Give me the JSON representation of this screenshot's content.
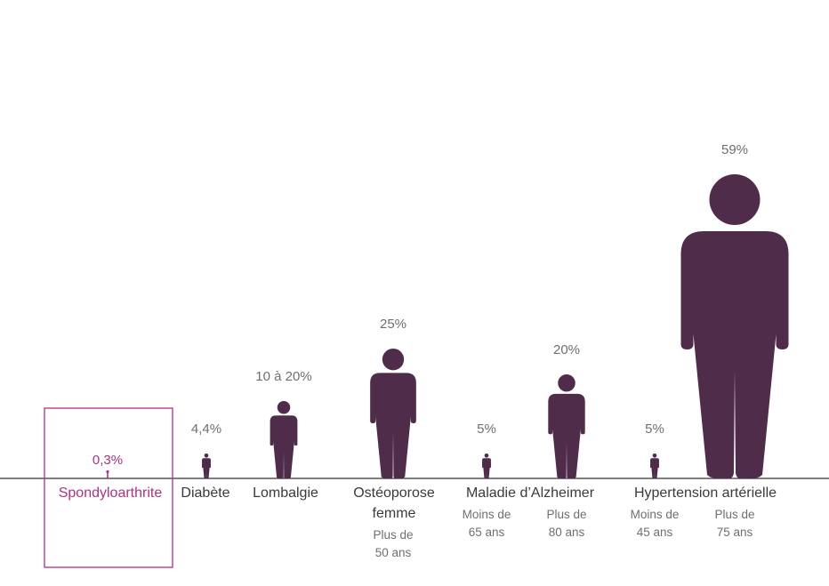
{
  "chart_data": {
    "type": "pictogram",
    "unit": "%",
    "colors": {
      "figure": "#4f2c4a",
      "highlight": "#b1307e",
      "baseline": "#333333"
    },
    "highlight_category": "Spondyloarthrite",
    "items": [
      {
        "category": "Spondyloarthrite",
        "value": 0.3,
        "label": "0,3%",
        "highlight": true
      },
      {
        "category": "Diabète",
        "value": 4.4,
        "label": "4,4%"
      },
      {
        "category": "Lombalgie",
        "value": 15,
        "label": "10 à 20%"
      },
      {
        "category": "Ostéoporose femme",
        "category_lines": [
          "Ostéoporose",
          "femme"
        ],
        "value": 25,
        "label": "25%",
        "sublabel_lines": [
          "Plus de",
          "50 ans"
        ]
      },
      {
        "category": "Maladie d'Alzheimer",
        "group": "Maladie d’Alzheimer",
        "value": 5,
        "label": "5%",
        "sublabel_lines": [
          "Moins de",
          "65 ans"
        ]
      },
      {
        "category": "Maladie d'Alzheimer",
        "group": "Maladie d’Alzheimer",
        "value": 20,
        "label": "20%",
        "sublabel_lines": [
          "Plus de",
          "80 ans"
        ]
      },
      {
        "category": "Hypertension artérielle",
        "group": "Hypertension artérielle",
        "value": 5,
        "label": "5%",
        "sublabel_lines": [
          "Moins de",
          "45 ans"
        ]
      },
      {
        "category": "Hypertension artérielle",
        "group": "Hypertension artérielle",
        "value": 59,
        "label": "59%",
        "sublabel_lines": [
          "Plus de",
          "75 ans"
        ]
      }
    ],
    "group_labels": [
      "Maladie d’Alzheimer",
      "Hypertension artérielle"
    ]
  }
}
